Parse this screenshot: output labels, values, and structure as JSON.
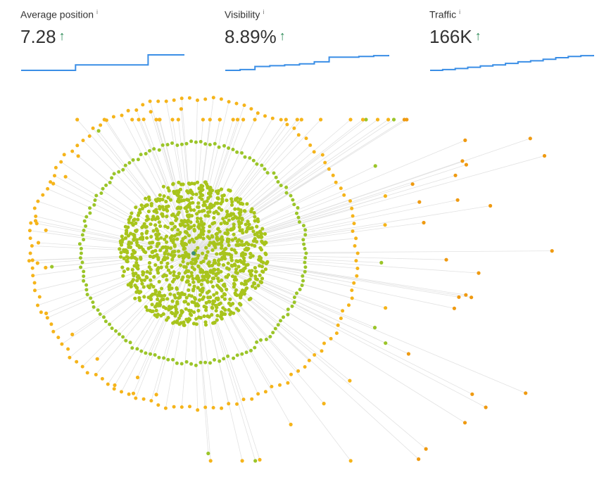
{
  "metrics": [
    {
      "label": "Average position",
      "value": "7.28",
      "trend": "↑",
      "trend_color": "#2e8b57",
      "line_color": "#3a8ee6",
      "sparkline": [
        0,
        0,
        0,
        0.35,
        0.35,
        0.35,
        0.35,
        1,
        1,
        1
      ]
    },
    {
      "label": "Visibility",
      "value": "8.89%",
      "trend": "↑",
      "trend_color": "#2e8b57",
      "line_color": "#3a8ee6",
      "sparkline": [
        0,
        0.05,
        0.25,
        0.3,
        0.35,
        0.42,
        0.55,
        0.85,
        0.85,
        0.9,
        0.95,
        1
      ]
    },
    {
      "label": "Traffic",
      "value": "166K",
      "trend": "↑",
      "trend_color": "#2e8b57",
      "line_color": "#3a8ee6",
      "sparkline": [
        0,
        0.05,
        0.12,
        0.2,
        0.28,
        0.35,
        0.45,
        0.55,
        0.62,
        0.72,
        0.82,
        0.9,
        0.95,
        1
      ]
    }
  ],
  "graph": {
    "colors": {
      "core": "#a8c41c",
      "ring": "#9bc529",
      "outer": "#f5b41a",
      "far": "#ef9a11",
      "center": "#3d8f73",
      "edge": "#e2e2e2"
    }
  }
}
